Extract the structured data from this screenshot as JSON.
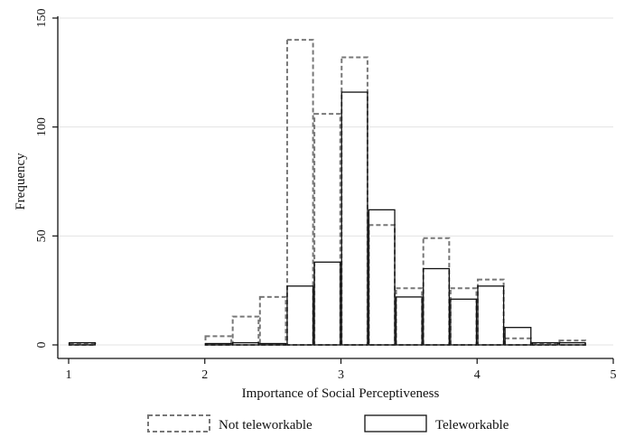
{
  "chart_data": {
    "type": "bar",
    "title": "",
    "xlabel": "Importance of Social Perceptiveness",
    "ylabel": "Frequency",
    "xlim": [
      1,
      5
    ],
    "ylim": [
      0,
      150
    ],
    "xticks": [
      "1",
      "2",
      "3",
      "4",
      "5"
    ],
    "yticks": [
      "0",
      "50",
      "100",
      "150"
    ],
    "bin_width": 0.19,
    "grid": true,
    "legend_position": "bottom",
    "series": [
      {
        "name": "Not teleworkable",
        "style": "dashed",
        "color": "#777777",
        "bins": [
          {
            "x": 1.1,
            "y": 0
          },
          {
            "x": 2.1,
            "y": 4
          },
          {
            "x": 2.3,
            "y": 13
          },
          {
            "x": 2.5,
            "y": 22
          },
          {
            "x": 2.7,
            "y": 140
          },
          {
            "x": 2.9,
            "y": 106
          },
          {
            "x": 3.1,
            "y": 132
          },
          {
            "x": 3.3,
            "y": 55
          },
          {
            "x": 3.5,
            "y": 26
          },
          {
            "x": 3.7,
            "y": 49
          },
          {
            "x": 3.9,
            "y": 26
          },
          {
            "x": 4.1,
            "y": 30
          },
          {
            "x": 4.3,
            "y": 3
          },
          {
            "x": 4.5,
            "y": 0
          },
          {
            "x": 4.7,
            "y": 2
          }
        ]
      },
      {
        "name": "Teleworkable",
        "style": "solid",
        "color": "#111111",
        "bins": [
          {
            "x": 1.1,
            "y": 1
          },
          {
            "x": 2.1,
            "y": 0
          },
          {
            "x": 2.3,
            "y": 1
          },
          {
            "x": 2.5,
            "y": 0
          },
          {
            "x": 2.7,
            "y": 27
          },
          {
            "x": 2.9,
            "y": 38
          },
          {
            "x": 3.1,
            "y": 116
          },
          {
            "x": 3.3,
            "y": 62
          },
          {
            "x": 3.5,
            "y": 22
          },
          {
            "x": 3.7,
            "y": 35
          },
          {
            "x": 3.9,
            "y": 21
          },
          {
            "x": 4.1,
            "y": 27
          },
          {
            "x": 4.3,
            "y": 8
          },
          {
            "x": 4.5,
            "y": 1
          },
          {
            "x": 4.7,
            "y": 1
          }
        ]
      }
    ]
  }
}
